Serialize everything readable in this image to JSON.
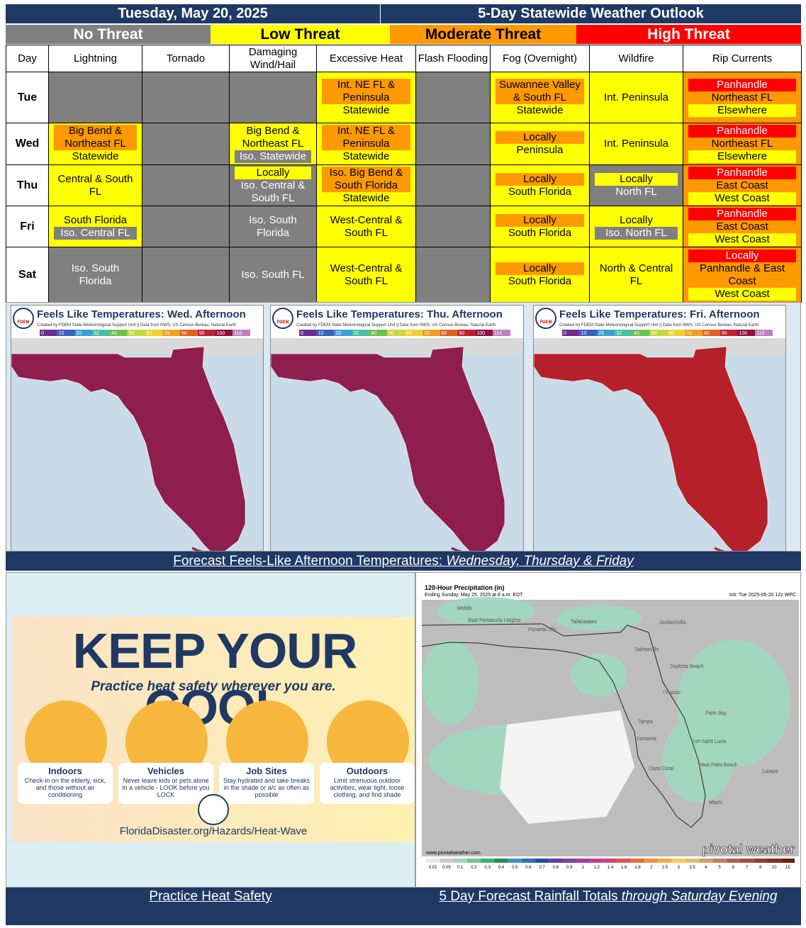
{
  "header": {
    "date": "Tuesday, May 20, 2025",
    "title": "5-Day Statewide Weather Outlook"
  },
  "legend": [
    {
      "key": "none",
      "label": "No Threat",
      "color": "#808080",
      "text_color": "#ffffff"
    },
    {
      "key": "low",
      "label": "Low Threat",
      "color": "#ffff00",
      "text_color": "#000000"
    },
    {
      "key": "moderate",
      "label": "Moderate Threat",
      "color": "#ff9900",
      "text_color": "#000000"
    },
    {
      "key": "high",
      "label": "High Threat",
      "color": "#ff0000",
      "text_color": "#ffffff"
    }
  ],
  "table": {
    "columns": [
      "Day",
      "Lightning",
      "Tornado",
      "Damaging Wind/Hail",
      "Excessive Heat",
      "Flash Flooding",
      "Fog (Overnight)",
      "Wildfire",
      "Rip Currents"
    ],
    "rows": [
      {
        "day": "Tue",
        "cells": [
          {
            "bg": "none",
            "lines": []
          },
          {
            "bg": "none",
            "lines": []
          },
          {
            "bg": "none",
            "lines": []
          },
          {
            "bg": "low",
            "lines": [
              {
                "text": "Int. NE FL & Peninsula",
                "level": "moderate"
              },
              {
                "text": "Statewide",
                "level": "low"
              }
            ]
          },
          {
            "bg": "none",
            "lines": []
          },
          {
            "bg": "low",
            "lines": [
              {
                "text": "Suwannee Valley & South FL",
                "level": "moderate"
              },
              {
                "text": "Statewide",
                "level": "low"
              }
            ]
          },
          {
            "bg": "low",
            "lines": [
              {
                "text": "Int. Peninsula",
                "level": "low"
              }
            ]
          },
          {
            "bg": "moderate",
            "lines": [
              {
                "text": "Panhandle",
                "level": "high"
              },
              {
                "text": "Northeast FL",
                "level": "moderate"
              },
              {
                "text": "Elsewhere",
                "level": "low"
              }
            ]
          }
        ]
      },
      {
        "day": "Wed",
        "cells": [
          {
            "bg": "low",
            "lines": [
              {
                "text": "Big Bend & Northeast FL",
                "level": "moderate"
              },
              {
                "text": "Statewide",
                "level": "low"
              }
            ]
          },
          {
            "bg": "none",
            "lines": []
          },
          {
            "bg": "low",
            "lines": [
              {
                "text": "Big Bend & Northeast FL",
                "level": "low"
              },
              {
                "text": "Iso. Statewide",
                "level": "none"
              }
            ]
          },
          {
            "bg": "low",
            "lines": [
              {
                "text": "Int. NE FL & Peninsula",
                "level": "moderate"
              },
              {
                "text": "Statewide",
                "level": "low"
              }
            ]
          },
          {
            "bg": "none",
            "lines": []
          },
          {
            "bg": "low",
            "lines": [
              {
                "text": "Locally",
                "level": "moderate"
              },
              {
                "text": "Peninsula",
                "level": "low"
              }
            ]
          },
          {
            "bg": "low",
            "lines": [
              {
                "text": "Int. Peninsula",
                "level": "low"
              }
            ]
          },
          {
            "bg": "moderate",
            "lines": [
              {
                "text": "Panhandle",
                "level": "high"
              },
              {
                "text": "Northeast FL",
                "level": "moderate"
              },
              {
                "text": "Elsewhere",
                "level": "low"
              }
            ]
          }
        ]
      },
      {
        "day": "Thu",
        "cells": [
          {
            "bg": "low",
            "lines": [
              {
                "text": "Central & South FL",
                "level": "low"
              }
            ]
          },
          {
            "bg": "none",
            "lines": []
          },
          {
            "bg": "none",
            "lines": [
              {
                "text": "Locally",
                "level": "low"
              },
              {
                "text": "Iso. Central & South FL",
                "level": "none"
              }
            ]
          },
          {
            "bg": "low",
            "lines": [
              {
                "text": "Iso. Big Bend & South Florida",
                "level": "moderate"
              },
              {
                "text": "Statewide",
                "level": "low"
              }
            ]
          },
          {
            "bg": "none",
            "lines": []
          },
          {
            "bg": "low",
            "lines": [
              {
                "text": "Locally",
                "level": "moderate"
              },
              {
                "text": "South Florida",
                "level": "low"
              }
            ]
          },
          {
            "bg": "none",
            "lines": [
              {
                "text": "Locally",
                "level": "low"
              },
              {
                "text": "North FL",
                "level": "none"
              }
            ]
          },
          {
            "bg": "moderate",
            "lines": [
              {
                "text": "Panhandle",
                "level": "high"
              },
              {
                "text": "East Coast",
                "level": "moderate"
              },
              {
                "text": "West Coast",
                "level": "low"
              }
            ]
          }
        ]
      },
      {
        "day": "Fri",
        "cells": [
          {
            "bg": "low",
            "lines": [
              {
                "text": "South Florida",
                "level": "low"
              },
              {
                "text": "Iso. Central FL",
                "level": "none"
              }
            ]
          },
          {
            "bg": "none",
            "lines": []
          },
          {
            "bg": "none",
            "lines": [
              {
                "text": "Iso. South Florida",
                "level": "none"
              }
            ]
          },
          {
            "bg": "low",
            "lines": [
              {
                "text": "West-Central & South FL",
                "level": "low"
              }
            ]
          },
          {
            "bg": "none",
            "lines": []
          },
          {
            "bg": "low",
            "lines": [
              {
                "text": "Locally",
                "level": "moderate"
              },
              {
                "text": "South Florida",
                "level": "low"
              }
            ]
          },
          {
            "bg": "low",
            "lines": [
              {
                "text": "Locally",
                "level": "low"
              },
              {
                "text": "Iso. North FL",
                "level": "none"
              }
            ]
          },
          {
            "bg": "moderate",
            "lines": [
              {
                "text": "Panhandle",
                "level": "high"
              },
              {
                "text": "East Coast",
                "level": "moderate"
              },
              {
                "text": "West Coast",
                "level": "low"
              }
            ]
          }
        ]
      },
      {
        "day": "Sat",
        "cells": [
          {
            "bg": "none",
            "lines": [
              {
                "text": "Iso. South Florida",
                "level": "none"
              }
            ]
          },
          {
            "bg": "none",
            "lines": []
          },
          {
            "bg": "none",
            "lines": [
              {
                "text": "Iso. South FL",
                "level": "none"
              }
            ]
          },
          {
            "bg": "low",
            "lines": [
              {
                "text": "West-Central & South FL",
                "level": "low"
              }
            ]
          },
          {
            "bg": "none",
            "lines": []
          },
          {
            "bg": "low",
            "lines": [
              {
                "text": "Locally",
                "level": "moderate"
              },
              {
                "text": "South Florida",
                "level": "low"
              }
            ]
          },
          {
            "bg": "low",
            "lines": [
              {
                "text": "North & Central FL",
                "level": "low"
              }
            ]
          },
          {
            "bg": "moderate",
            "lines": [
              {
                "text": "Locally",
                "level": "high"
              },
              {
                "text": "Panhandle & East Coast",
                "level": "moderate"
              },
              {
                "text": "West Coast",
                "level": "low"
              }
            ]
          }
        ]
      }
    ]
  },
  "feels_like": {
    "maps": [
      {
        "title": "Feels Like Temperatures: Wed. Afternoon"
      },
      {
        "title": "Feels Like Temperatures: Thu. Afternoon"
      },
      {
        "title": "Feels Like Temperatures: Fri. Afternoon"
      }
    ],
    "credit": "Created by FDEM State Meteorological Support Unit || Data from NWS, US Census Bureau, Natural Earth",
    "logo": "FDEM",
    "colorbar": [
      "0",
      "10",
      "20",
      "32",
      "40",
      "50",
      "60",
      "70",
      "80",
      "90",
      "100",
      "110"
    ],
    "caption": {
      "plain": "Forecast Feels-Like Afternoon Temperatures: ",
      "italic": "Wednesday, Thursday & Friday"
    }
  },
  "poster": {
    "title": "KEEP YOUR COOL",
    "subtitle": "Practice heat safety wherever you are.",
    "items": [
      {
        "title": "Indoors",
        "text": "Check-in on the elderly, sick, and those without air conditioning"
      },
      {
        "title": "Vehicles",
        "text": "Never leave kids or pets alone in a vehicle - LOOK before you LOCK"
      },
      {
        "title": "Job Sites",
        "text": "Stay hydrated and take breaks in the shade or a/c as often as possible"
      },
      {
        "title": "Outdoors",
        "text": "Limit strenuous outdoor activities, wear light, loose clothing, and find shade"
      }
    ],
    "url": "FloridaDisaster.org/Hazards/Heat-Wave",
    "caption": "Practice Heat Safety"
  },
  "rainfall": {
    "title": "120-Hour Precipitation (in)",
    "subtitle": "Ending Sunday, May 25, 2025 at 8 a.m. EDT",
    "init": "Init: Tue 2025-05-20 12z WPC",
    "website": "www.pivotalweather.com",
    "brand": "pivotal weather",
    "cities": [
      "Mobile",
      "East Pensacola Heights",
      "Panama City",
      "Tallahassee",
      "Jacksonville",
      "Gainesville",
      "Daytona Beach",
      "Orlando",
      "Palm Bay",
      "Tampa",
      "Sarasota",
      "Port Saint Lucie",
      "West Palm Beach",
      "Cape Coral",
      "Miami",
      "Lucaya"
    ],
    "colorbar": [
      "0.01",
      "0.05",
      "0.1",
      "0.2",
      "0.3",
      "0.4",
      "0.5",
      "0.6",
      "0.7",
      "0.8",
      "0.9",
      "1",
      "1.2",
      "1.4",
      "1.6",
      "1.8",
      "2",
      "2.5",
      "3",
      "3.5",
      "4",
      "5",
      "6",
      "7",
      "8",
      "10",
      "15"
    ],
    "caption": {
      "plain": "5 Day Forecast Rainfall Totals ",
      "italic": "through Saturday Evening"
    }
  }
}
